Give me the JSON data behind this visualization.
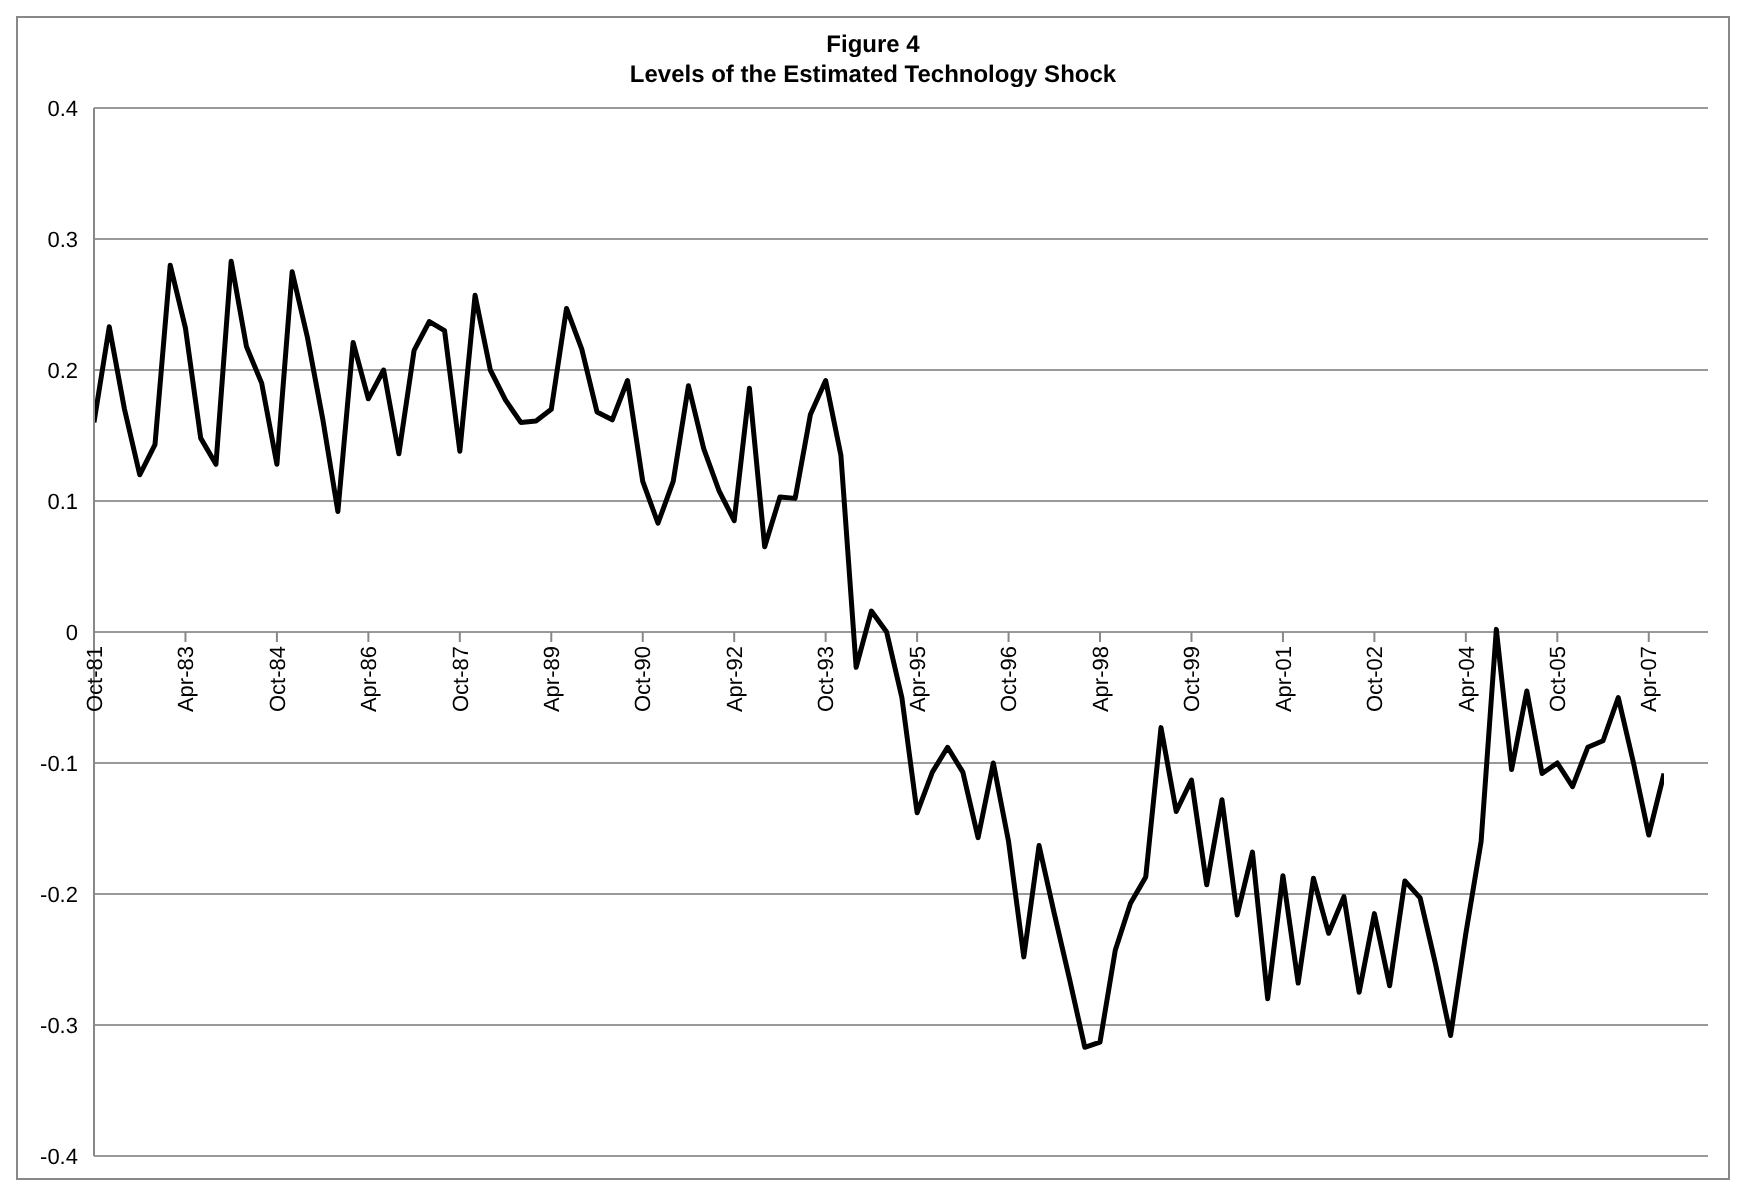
{
  "chart_data": {
    "type": "line",
    "title": "Figure 4",
    "subtitle": "Levels of the Estimated Technology Shock",
    "categories": [
      "Oct-81",
      null,
      null,
      null,
      null,
      null,
      "Apr-83",
      null,
      null,
      null,
      null,
      null,
      "Oct-84",
      null,
      null,
      null,
      null,
      null,
      "Apr-86",
      null,
      null,
      null,
      null,
      null,
      "Oct-87",
      null,
      null,
      null,
      null,
      null,
      "Apr-89",
      null,
      null,
      null,
      null,
      null,
      "Oct-90",
      null,
      null,
      null,
      null,
      null,
      "Apr-92",
      null,
      null,
      null,
      null,
      null,
      "Oct-93",
      null,
      null,
      null,
      null,
      null,
      "Apr-95",
      null,
      null,
      null,
      null,
      null,
      "Oct-96",
      null,
      null,
      null,
      null,
      null,
      "Apr-98",
      null,
      null,
      null,
      null,
      null,
      "Oct-99",
      null,
      null,
      null,
      null,
      null,
      "Apr-01",
      null,
      null,
      null,
      null,
      null,
      "Oct-02",
      null,
      null,
      null,
      null,
      null,
      "Apr-04",
      null,
      null,
      null,
      null,
      null,
      "Oct-05",
      null,
      null,
      null,
      null,
      null,
      "Apr-07",
      null
    ],
    "series": [
      {
        "color": "#000000",
        "values": [
          0.16,
          0.233,
          0.17,
          0.12,
          0.143,
          0.28,
          0.232,
          0.148,
          0.128,
          0.283,
          0.218,
          0.19,
          0.128,
          0.275,
          0.225,
          0.163,
          0.092,
          0.221,
          0.178,
          0.2,
          0.136,
          0.215,
          0.237,
          0.23,
          0.138,
          0.257,
          0.2,
          0.177,
          0.16,
          0.161,
          0.17,
          0.247,
          0.216,
          0.168,
          0.162,
          0.192,
          0.115,
          0.083,
          0.115,
          0.188,
          0.14,
          0.108,
          0.085,
          0.186,
          0.065,
          0.103,
          0.102,
          0.166,
          0.192,
          0.135,
          -0.027,
          0.016,
          0.0,
          -0.05,
          -0.138,
          -0.107,
          -0.088,
          -0.107,
          -0.157,
          -0.1,
          -0.16,
          -0.248,
          -0.163,
          -0.215,
          -0.265,
          -0.317,
          -0.313,
          -0.243,
          -0.207,
          -0.187,
          -0.073,
          -0.137,
          -0.113,
          -0.193,
          -0.128,
          -0.216,
          -0.168,
          -0.28,
          -0.186,
          -0.268,
          -0.188,
          -0.23,
          -0.202,
          -0.275,
          -0.215,
          -0.27,
          -0.19,
          -0.203,
          -0.253,
          -0.308,
          -0.23,
          -0.16,
          0.002,
          -0.105,
          -0.045,
          -0.108,
          -0.1,
          -0.118,
          -0.088,
          -0.083,
          -0.05,
          -0.1,
          -0.155,
          -0.108
        ]
      }
    ],
    "ylim": [
      -0.4,
      0.4
    ],
    "yticks": [
      -0.4,
      -0.3,
      -0.2,
      -0.1,
      0,
      0.1,
      0.2,
      0.3,
      0.4
    ],
    "grid": "y",
    "legend": false,
    "marker": "none",
    "line_style": "solid"
  }
}
